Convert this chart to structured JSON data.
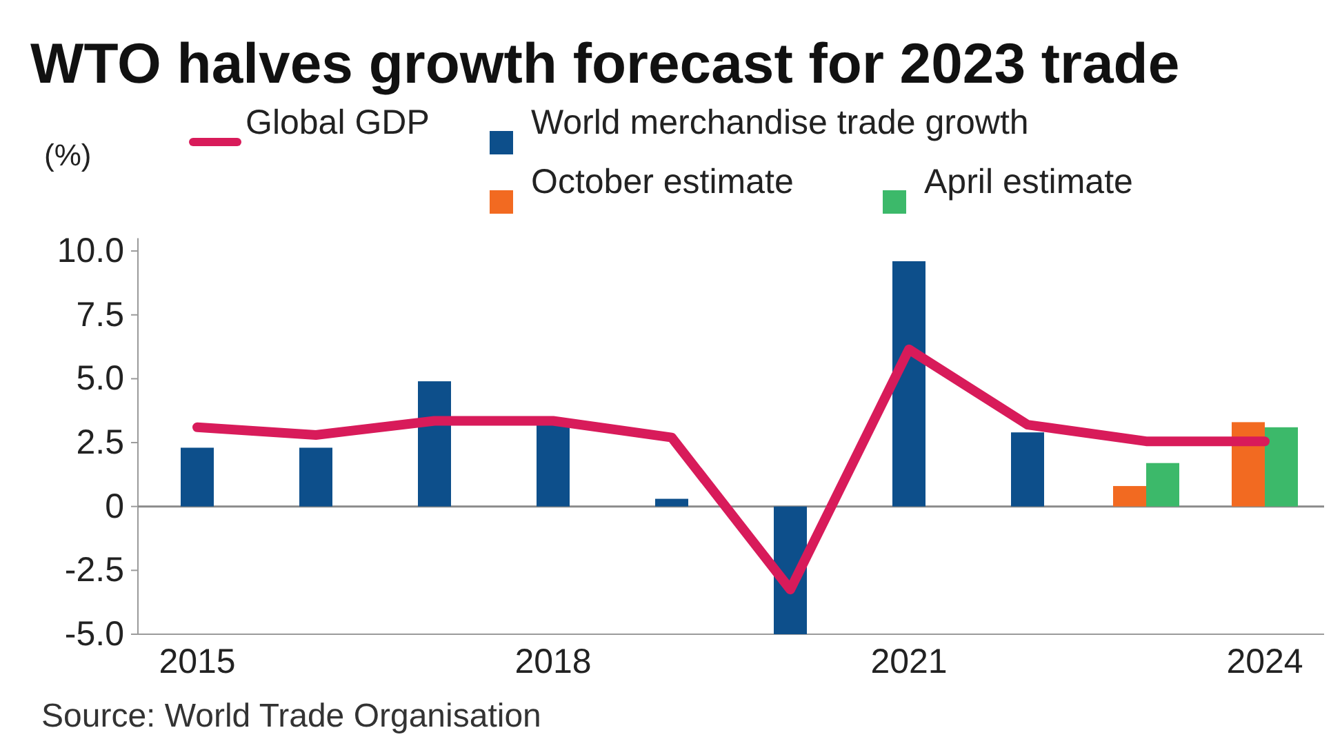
{
  "chart_data": {
    "type": "bar",
    "title": "WTO halves growth forecast for 2023 trade",
    "ylabel": "(%)",
    "categories": [
      "2015",
      null,
      null,
      "2018",
      null,
      null,
      "2021",
      null,
      null,
      "2024"
    ],
    "series": [
      {
        "name": "Global GDP",
        "type": "line",
        "color": "#d81b5a",
        "values": [
          3.1,
          2.8,
          3.35,
          3.35,
          2.7,
          -3.25,
          6.15,
          3.2,
          2.55,
          2.55
        ]
      },
      {
        "name": "World merchandise trade growth",
        "color": "#0d4f8b",
        "values": [
          2.3,
          2.3,
          4.9,
          3.2,
          0.3,
          -5.0,
          9.6,
          2.9,
          null,
          null
        ]
      },
      {
        "name": "October estimate",
        "color": "#f26a21",
        "values": [
          null,
          null,
          null,
          null,
          null,
          null,
          null,
          null,
          0.8,
          3.3
        ]
      },
      {
        "name": "April estimate",
        "color": "#3cb96a",
        "values": [
          null,
          null,
          null,
          null,
          null,
          null,
          null,
          null,
          1.7,
          3.1
        ]
      }
    ],
    "ylim": [
      -5,
      10.5
    ],
    "yticks": [
      {
        "value": -5,
        "label": "-5.0"
      },
      {
        "value": -2.5,
        "label": "-2.5"
      },
      0,
      {
        "value": 2.5,
        "label": "2.5"
      },
      {
        "value": 5,
        "label": "5.0"
      },
      {
        "value": 7.5,
        "label": "7.5"
      },
      {
        "value": 10,
        "label": "10.0"
      }
    ],
    "ref_lines": [
      {
        "axis": "y",
        "value": 0,
        "color": "#8a8a8a"
      }
    ],
    "legend": "top",
    "marker": "none",
    "annotations": [
      "Source: World Trade Organisation"
    ]
  }
}
